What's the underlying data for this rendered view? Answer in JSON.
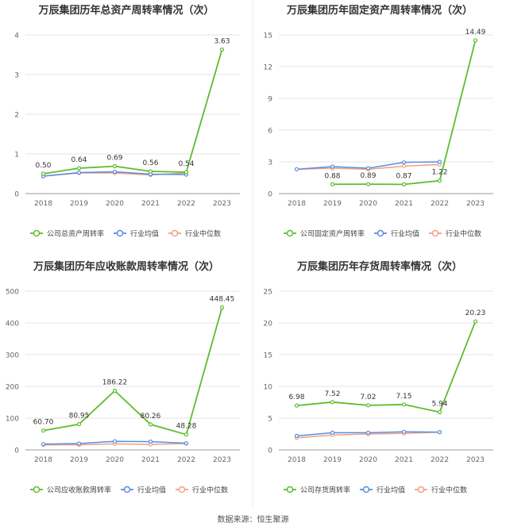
{
  "colors": {
    "company": "#5cbd2d",
    "avg": "#5a8de0",
    "median": "#f0a086",
    "grid": "#e6e6e6",
    "axis": "#999999"
  },
  "legend": {
    "avg": "行业均值",
    "median": "行业中位数"
  },
  "source": "数据来源：恒生聚源",
  "charts": [
    {
      "title": "万辰集团历年总资产周转率情况（次）",
      "legend_company": "公司总资产周转率",
      "chart_data": {
        "type": "line",
        "categories": [
          "2018",
          "2019",
          "2020",
          "2021",
          "2022",
          "2023"
        ],
        "ylim": [
          0,
          4
        ],
        "yticks": [
          0,
          1,
          2,
          3,
          4
        ],
        "series": [
          {
            "name": "公司总资产周转率",
            "role": "company",
            "values": [
              0.5,
              0.64,
              0.69,
              0.56,
              0.54,
              3.63
            ],
            "labels": [
              "0.50",
              "0.64",
              "0.69",
              "0.56",
              "0.54",
              "3.63"
            ]
          },
          {
            "name": "行业均值",
            "role": "avg",
            "values": [
              0.44,
              0.53,
              0.55,
              0.49,
              0.48,
              null
            ]
          },
          {
            "name": "行业中位数",
            "role": "median",
            "values": [
              0.44,
              0.52,
              0.52,
              0.47,
              0.52,
              null
            ]
          }
        ]
      }
    },
    {
      "title": "万辰集团历年固定资产周转率情况（次）",
      "legend_company": "公司固定资产周转率",
      "chart_data": {
        "type": "line",
        "categories": [
          "2018",
          "2019",
          "2020",
          "2021",
          "2022",
          "2023"
        ],
        "ylim": [
          0,
          15
        ],
        "yticks": [
          0,
          3,
          6,
          9,
          12,
          15
        ],
        "series": [
          {
            "name": "公司固定资产周转率",
            "role": "company",
            "values": [
              null,
              0.88,
              0.89,
              0.87,
              1.22,
              14.49
            ],
            "labels": [
              null,
              "0.88",
              "0.89",
              "0.87",
              "1.22",
              "14.49"
            ]
          },
          {
            "name": "行业均值",
            "role": "avg",
            "values": [
              2.3,
              2.55,
              2.4,
              2.95,
              3.0,
              null
            ]
          },
          {
            "name": "行业中位数",
            "role": "median",
            "values": [
              2.3,
              2.4,
              2.3,
              2.6,
              2.75,
              null
            ]
          }
        ]
      }
    },
    {
      "title": "万辰集团历年应收账款周转率情况（次）",
      "legend_company": "公司应收账款周转率",
      "chart_data": {
        "type": "line",
        "categories": [
          "2018",
          "2019",
          "2020",
          "2021",
          "2022",
          "2023"
        ],
        "ylim": [
          0,
          500
        ],
        "yticks": [
          0,
          100,
          200,
          300,
          400,
          500
        ],
        "series": [
          {
            "name": "公司应收账款周转率",
            "role": "company",
            "values": [
              60.7,
              80.95,
              186.22,
              80.26,
              48.28,
              448.45
            ],
            "labels": [
              "60.70",
              "80.95",
              "186.22",
              "80.26",
              "48.28",
              "448.45"
            ]
          },
          {
            "name": "行业均值",
            "role": "avg",
            "values": [
              18,
              20,
              27,
              26,
              21,
              null
            ]
          },
          {
            "name": "行业中位数",
            "role": "median",
            "values": [
              16,
              16,
              19,
              17,
              20,
              null
            ]
          }
        ]
      }
    },
    {
      "title": "万辰集团历年存货周转率情况（次）",
      "legend_company": "公司存货周转率",
      "chart_data": {
        "type": "line",
        "categories": [
          "2018",
          "2019",
          "2020",
          "2021",
          "2022",
          "2023"
        ],
        "ylim": [
          0,
          25
        ],
        "yticks": [
          0,
          5,
          10,
          15,
          20,
          25
        ],
        "series": [
          {
            "name": "公司存货周转率",
            "role": "company",
            "values": [
              6.98,
              7.52,
              7.02,
              7.15,
              5.94,
              20.23
            ],
            "labels": [
              "6.98",
              "7.52",
              "7.02",
              "7.15",
              "5.94",
              "20.23"
            ]
          },
          {
            "name": "行业均值",
            "role": "avg",
            "values": [
              2.2,
              2.7,
              2.7,
              2.85,
              2.8,
              null
            ]
          },
          {
            "name": "行业中位数",
            "role": "median",
            "values": [
              1.9,
              2.35,
              2.5,
              2.6,
              2.8,
              null
            ]
          }
        ]
      }
    }
  ]
}
